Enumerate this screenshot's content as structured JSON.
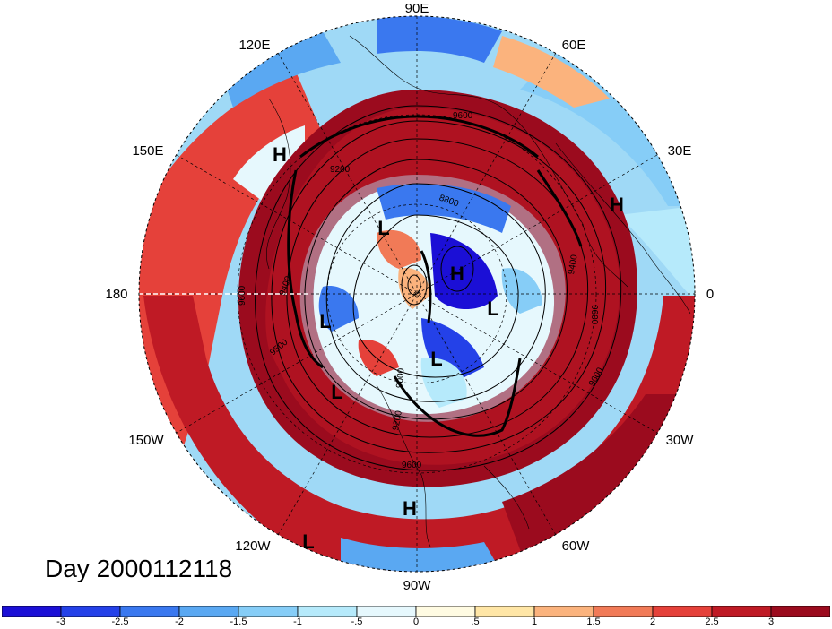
{
  "title": "Day 2000112118",
  "longitude_labels": [
    {
      "key": "90E",
      "text": "90E"
    },
    {
      "key": "60E",
      "text": "60E"
    },
    {
      "key": "120E",
      "text": "120E"
    },
    {
      "key": "30E",
      "text": "30E"
    },
    {
      "key": "150E",
      "text": "150E"
    },
    {
      "key": "180",
      "text": "180"
    },
    {
      "key": "0",
      "text": "0"
    },
    {
      "key": "150W",
      "text": "150W"
    },
    {
      "key": "30W",
      "text": "30W"
    },
    {
      "key": "120W",
      "text": "120W"
    },
    {
      "key": "60W",
      "text": "60W"
    },
    {
      "key": "90W",
      "text": "90W"
    }
  ],
  "pressure_centers": [
    {
      "type": "H"
    },
    {
      "type": "L"
    },
    {
      "type": "H"
    },
    {
      "type": "L"
    },
    {
      "type": "L"
    },
    {
      "type": "L"
    },
    {
      "type": "H"
    },
    {
      "type": "L"
    },
    {
      "type": "H"
    },
    {
      "type": "L"
    }
  ],
  "contour_labels": [
    "9600",
    "9600",
    "9600",
    "9600",
    "9600",
    "9400",
    "9400",
    "9200",
    "9200",
    "9000",
    "8800",
    "9500"
  ],
  "colorbar": {
    "colors": [
      "#1b0fd6",
      "#2441e8",
      "#3a78ef",
      "#5aa8f2",
      "#86cdf7",
      "#b6eafb",
      "#e6f8fd",
      "#fffbe2",
      "#ffe6a6",
      "#fbb37d",
      "#f17a57",
      "#e5413a",
      "#bf1a25",
      "#9b0b1e"
    ],
    "tick_labels": [
      "-3",
      "-2.5",
      "-2",
      "-1.5",
      "-1",
      "-.5",
      "0",
      ".5",
      "1",
      "1.5",
      "2",
      "2.5",
      "3"
    ]
  }
}
